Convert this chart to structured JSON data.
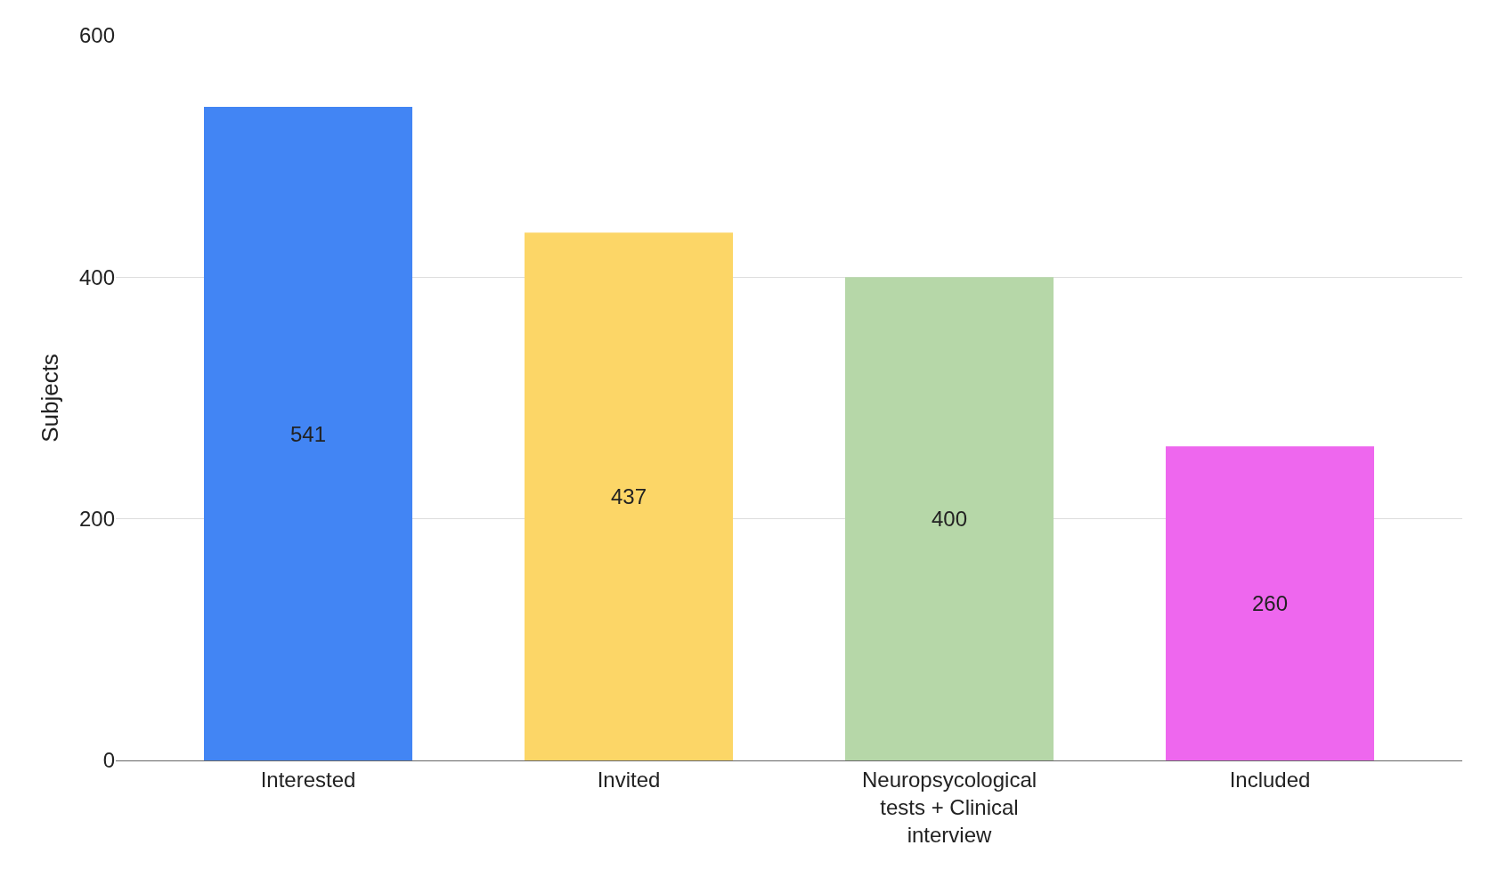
{
  "chart_data": {
    "type": "bar",
    "ylabel": "Subjects",
    "categories": [
      "Interested",
      "Invited",
      "Neuropsycological tests + Clinical interview",
      "Included"
    ],
    "values": [
      541,
      437,
      400,
      260
    ],
    "colors": [
      "#4285f4",
      "#fcd667",
      "#b6d7a8",
      "#ee67ee"
    ],
    "ylim": [
      0,
      600
    ],
    "yticks": [
      0,
      200,
      400,
      600
    ],
    "grid": "y",
    "data_labels": true
  }
}
